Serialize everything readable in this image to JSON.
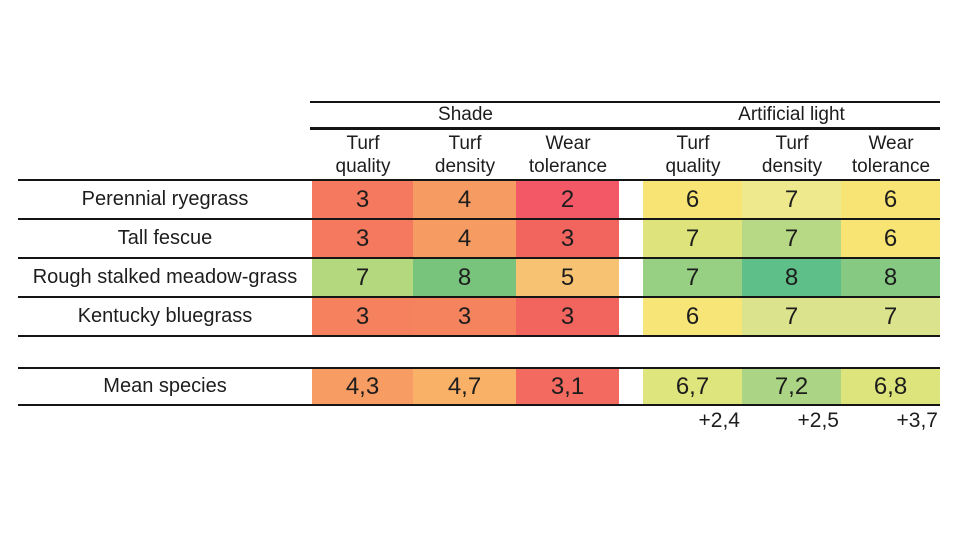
{
  "colors": {
    "background": "#ffffff",
    "text": "#1d1d1d",
    "line": "#151515"
  },
  "table": {
    "group_headers": [
      {
        "label": "Shade"
      },
      {
        "label": "Artificial light"
      }
    ],
    "sub_headers": [
      {
        "label": "Turf\nquality"
      },
      {
        "label": "Turf\ndensity"
      },
      {
        "label": "Wear\ntolerance"
      },
      {
        "label": "Turf\nquality"
      },
      {
        "label": "Turf\ndensity"
      },
      {
        "label": "Wear\ntolerance"
      }
    ],
    "rows": [
      {
        "species": "Perennial ryegrass",
        "cells": [
          {
            "value": "3",
            "color": "#F5795E"
          },
          {
            "value": "4",
            "color": "#F69B62"
          },
          {
            "value": "2",
            "color": "#F25866"
          },
          {
            "value": "6",
            "color": "#F7E474"
          },
          {
            "value": "7",
            "color": "#EDE98C"
          },
          {
            "value": "6",
            "color": "#F7E474"
          }
        ]
      },
      {
        "species": "Tall fescue",
        "cells": [
          {
            "value": "3",
            "color": "#F5795E"
          },
          {
            "value": "4",
            "color": "#F69B62"
          },
          {
            "value": "3",
            "color": "#F2655F"
          },
          {
            "value": "7",
            "color": "#DEE37B"
          },
          {
            "value": "7",
            "color": "#B7D985"
          },
          {
            "value": "6",
            "color": "#F7E472"
          }
        ]
      },
      {
        "species": "Rough stalked meadow-grass",
        "cells": [
          {
            "value": "7",
            "color": "#B3D87D"
          },
          {
            "value": "8",
            "color": "#79C47D"
          },
          {
            "value": "5",
            "color": "#F8C273"
          },
          {
            "value": "7",
            "color": "#98D083"
          },
          {
            "value": "8",
            "color": "#5EBF88"
          },
          {
            "value": "8",
            "color": "#85C983"
          }
        ]
      },
      {
        "species": "Kentucky bluegrass",
        "cells": [
          {
            "value": "3",
            "color": "#F5815F"
          },
          {
            "value": "3",
            "color": "#F5845E"
          },
          {
            "value": "3",
            "color": "#F2655F"
          },
          {
            "value": "6",
            "color": "#F7E577"
          },
          {
            "value": "7",
            "color": "#DBE38D"
          },
          {
            "value": "7",
            "color": "#DBE38D"
          }
        ]
      }
    ],
    "mean_row": {
      "label": "Mean species",
      "cells": [
        {
          "value": "4,3",
          "color": "#F79C63"
        },
        {
          "value": "4,7",
          "color": "#F9B168"
        },
        {
          "value": "3,1",
          "color": "#F26A60"
        },
        {
          "value": "6,7",
          "color": "#DFE57D"
        },
        {
          "value": "7,2",
          "color": "#ABD584"
        },
        {
          "value": "6,8",
          "color": "#DDE47B"
        }
      ]
    },
    "deltas": [
      "+2,4",
      "+2,5",
      "+3,7"
    ]
  },
  "chart_data": {
    "type": "heatmap",
    "column_groups": [
      {
        "name": "Shade",
        "columns": [
          "Turf quality",
          "Turf density",
          "Wear tolerance"
        ]
      },
      {
        "name": "Artificial light",
        "columns": [
          "Turf quality",
          "Turf density",
          "Wear tolerance"
        ]
      }
    ],
    "series": [
      {
        "name": "Perennial ryegrass",
        "values": [
          3,
          4,
          2,
          6,
          7,
          6
        ]
      },
      {
        "name": "Tall fescue",
        "values": [
          3,
          4,
          3,
          7,
          7,
          6
        ]
      },
      {
        "name": "Rough stalked meadow-grass",
        "values": [
          7,
          8,
          5,
          7,
          8,
          8
        ]
      },
      {
        "name": "Kentucky bluegrass",
        "values": [
          3,
          3,
          3,
          6,
          7,
          7
        ]
      },
      {
        "name": "Mean species",
        "values": [
          4.3,
          4.7,
          3.1,
          6.7,
          7.2,
          6.8
        ]
      }
    ],
    "mean_deltas_artificial_minus_shade": [
      2.4,
      2.5,
      3.7
    ],
    "color_scale": {
      "low": "#F25866",
      "mid": "#F7E474",
      "high": "#5EBF88",
      "note": "red = low rating, yellow = mid, green = high"
    },
    "decimal_separator": ","
  }
}
